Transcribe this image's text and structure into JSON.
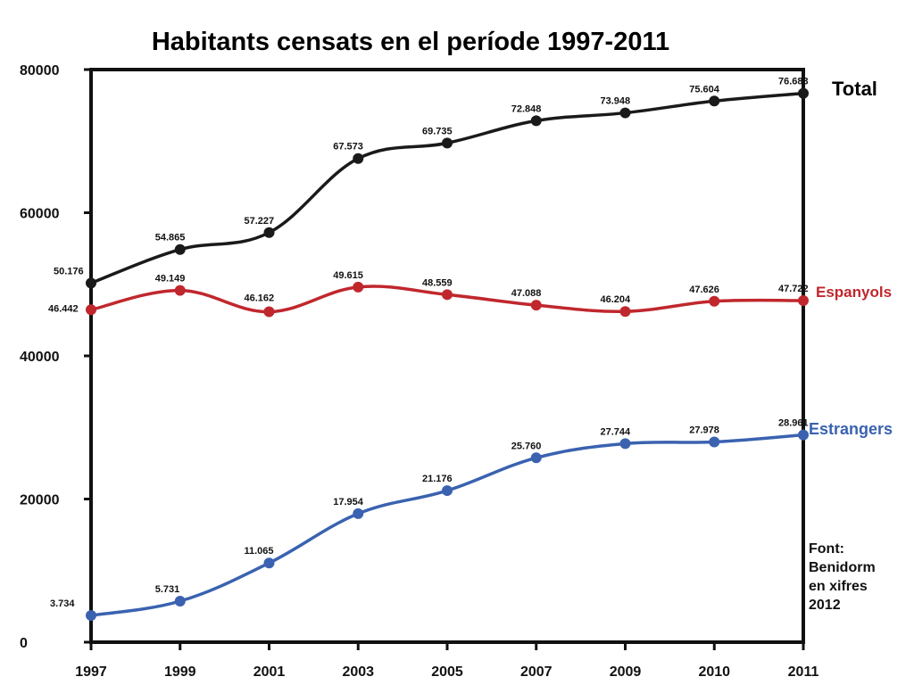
{
  "chart_data": {
    "type": "line",
    "title": "Habitants censats en el període 1997-2011",
    "xlabel": "",
    "ylabel": "",
    "categories": [
      "1997",
      "1999",
      "2001",
      "2003",
      "2005",
      "2007",
      "2009",
      "2010",
      "2011"
    ],
    "ylim": [
      0,
      80000
    ],
    "yticks": [
      "0",
      "20000",
      "40000",
      "60000",
      "80000"
    ],
    "grid": false,
    "legend": "labels at line ends (right)",
    "series": [
      {
        "name": "Total",
        "color": "#1a1a1a",
        "values": [
          50176,
          54865,
          57227,
          67573,
          69735,
          72848,
          73948,
          75604,
          76683
        ],
        "labels": [
          "50.176",
          "54.865",
          "57.227",
          "67.573",
          "69.735",
          "72.848",
          "73.948",
          "75.604",
          "76.683"
        ]
      },
      {
        "name": "Espanyols",
        "color": "#c0272d",
        "values": [
          46442,
          49149,
          46162,
          49615,
          48559,
          47088,
          46204,
          47626,
          47722
        ],
        "labels": [
          "46.442",
          "49.149",
          "46.162",
          "49.615",
          "48.559",
          "47.088",
          "46.204",
          "47.626",
          "47.722"
        ]
      },
      {
        "name": "Estrangers",
        "color": "#3a62b0",
        "values": [
          3734,
          5731,
          11065,
          17954,
          21176,
          25760,
          27744,
          27978,
          28961
        ],
        "labels": [
          "3.734",
          "5.731",
          "11.065",
          "17.954",
          "21.176",
          "25.760",
          "27.744",
          "27.978",
          "28.961"
        ]
      }
    ],
    "source_note": [
      "Font:",
      "Benidorm",
      "en xifres",
      "2012"
    ]
  }
}
